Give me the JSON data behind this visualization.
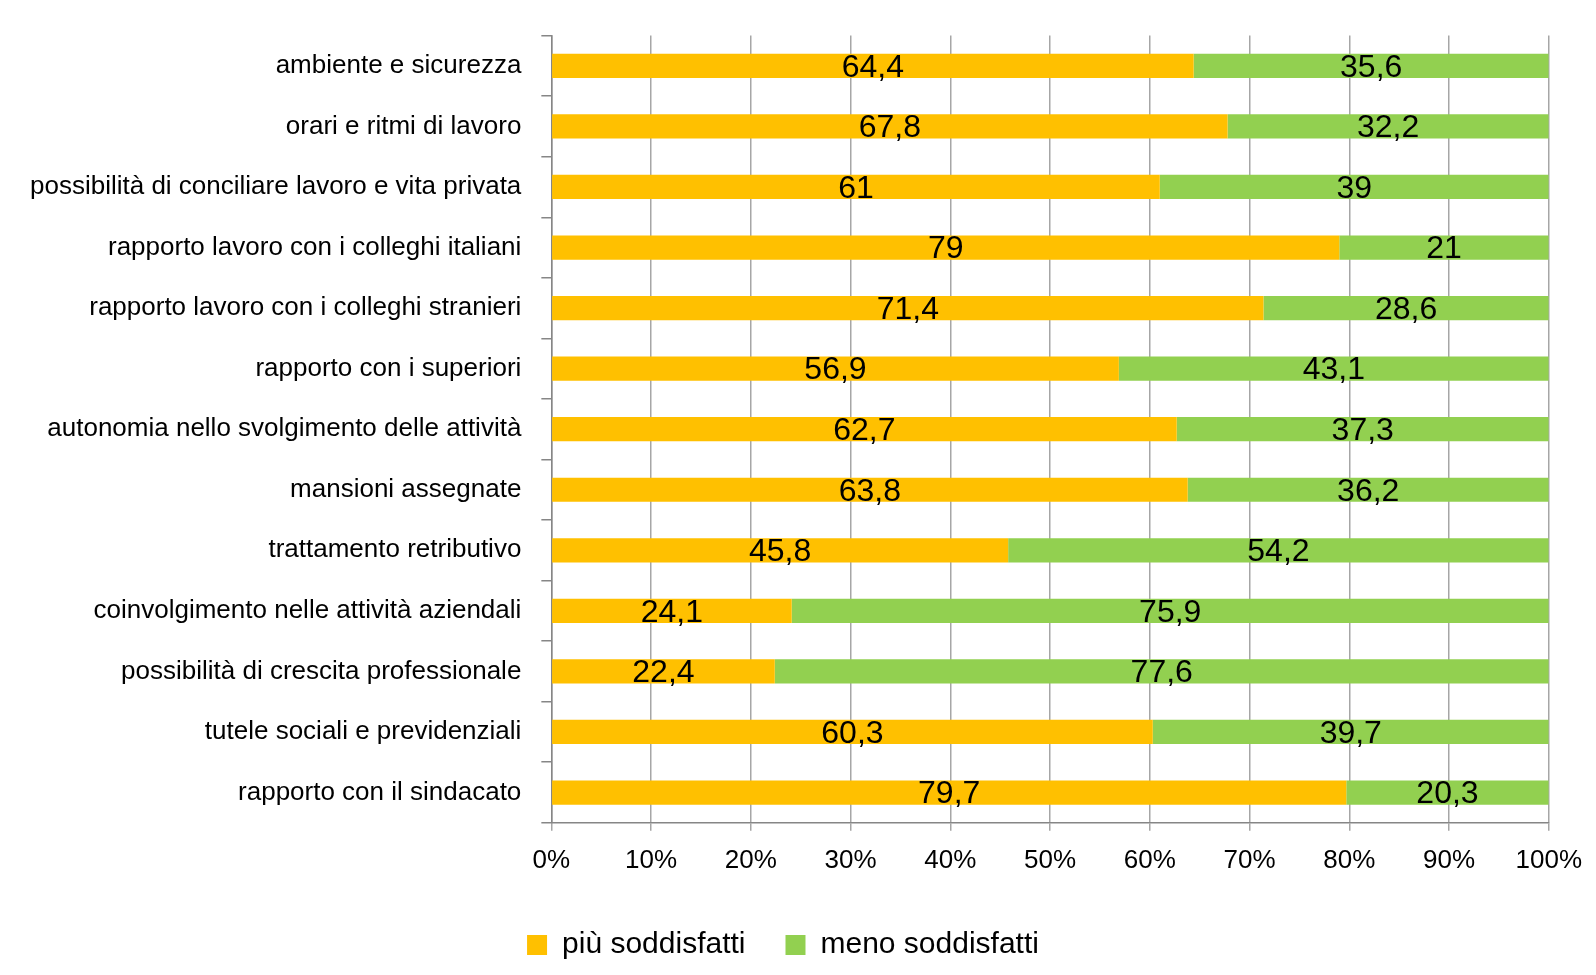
{
  "chart_data": {
    "type": "bar",
    "orientation": "horizontal",
    "stacked": true,
    "categories": [
      "ambiente e sicurezza",
      "orari e ritmi di lavoro",
      "possibilità di conciliare lavoro e vita privata",
      "rapporto lavoro con i colleghi italiani",
      "rapporto lavoro con i colleghi stranieri",
      "rapporto con i superiori",
      "autonomia nello svolgimento delle attività",
      "mansioni assegnate",
      "trattamento retributivo",
      "coinvolgimento nelle attività aziendali",
      "possibilità di crescita professionale",
      "tutele sociali e previdenziali",
      "rapporto con il sindacato"
    ],
    "series": [
      {
        "name": "più soddisfatti",
        "color": "#ffc000",
        "values": [
          64.4,
          67.8,
          61,
          79,
          71.4,
          56.9,
          62.7,
          63.8,
          45.8,
          24.1,
          22.4,
          60.3,
          79.7
        ],
        "value_labels": [
          "64,4",
          "67,8",
          "61",
          "79",
          "71,4",
          "56,9",
          "62,7",
          "63,8",
          "45,8",
          "24,1",
          "22,4",
          "60,3",
          "79,7"
        ]
      },
      {
        "name": "meno soddisfatti",
        "color": "#92d050",
        "values": [
          35.6,
          32.2,
          39,
          21,
          28.6,
          43.1,
          37.3,
          36.2,
          54.2,
          75.9,
          77.6,
          39.7,
          20.3
        ],
        "value_labels": [
          "35,6",
          "32,2",
          "39",
          "21",
          "28,6",
          "43,1",
          "37,3",
          "36,2",
          "54,2",
          "75,9",
          "77,6",
          "39,7",
          "20,3"
        ]
      }
    ],
    "xlim": [
      0,
      100
    ],
    "xticks": [
      {
        "value": 0,
        "label": "0%"
      },
      {
        "value": 10,
        "label": "10%"
      },
      {
        "value": 20,
        "label": "20%"
      },
      {
        "value": 30,
        "label": "30%"
      },
      {
        "value": 40,
        "label": "40%"
      },
      {
        "value": 50,
        "label": "50%"
      },
      {
        "value": 60,
        "label": "60%"
      },
      {
        "value": 70,
        "label": "70%"
      },
      {
        "value": 80,
        "label": "80%"
      },
      {
        "value": 90,
        "label": "90%"
      },
      {
        "value": 100,
        "label": "100%"
      }
    ],
    "grid": "x",
    "legend": "bottom"
  }
}
